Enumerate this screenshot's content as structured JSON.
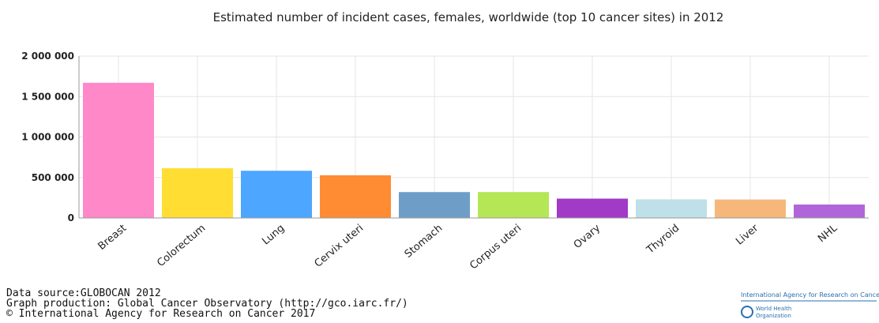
{
  "chart_data": {
    "type": "bar",
    "title": "Estimated number of incident cases, females, worldwide (top 10 cancer sites) in 2012",
    "categories": [
      "Breast",
      "Colorectum",
      "Lung",
      "Cervix uteri",
      "Stomach",
      "Corpus uteri",
      "Ovary",
      "Thyroid",
      "Liver",
      "NHL"
    ],
    "values": [
      1670000,
      614000,
      583000,
      527000,
      320000,
      320000,
      239000,
      230000,
      228000,
      166000
    ],
    "colors": [
      "#ff88c8",
      "#ffdd33",
      "#4da6ff",
      "#ff8c33",
      "#6e9ec8",
      "#b5e655",
      "#a23ac8",
      "#bfe0e8",
      "#f5b87a",
      "#b066d9"
    ],
    "ylim": [
      0,
      2000000
    ],
    "yticks": [
      0,
      {
        "value": 500000,
        "label": "500 000"
      },
      {
        "value": 1000000,
        "label": "1 000 000"
      },
      {
        "value": 1500000,
        "label": "1 500 000"
      },
      {
        "value": 2000000,
        "label": "2 000 000"
      }
    ],
    "grid": true
  },
  "footer": [
    "Data source:GLOBOCAN 2012",
    "Graph production: Global Cancer Observatory (http://gco.iarc.fr/)",
    "© International Agency for Research on Cancer 2017"
  ],
  "logo": {
    "agency": "International Agency for Research on Cancer",
    "who": [
      "World Health",
      "Organization"
    ]
  }
}
